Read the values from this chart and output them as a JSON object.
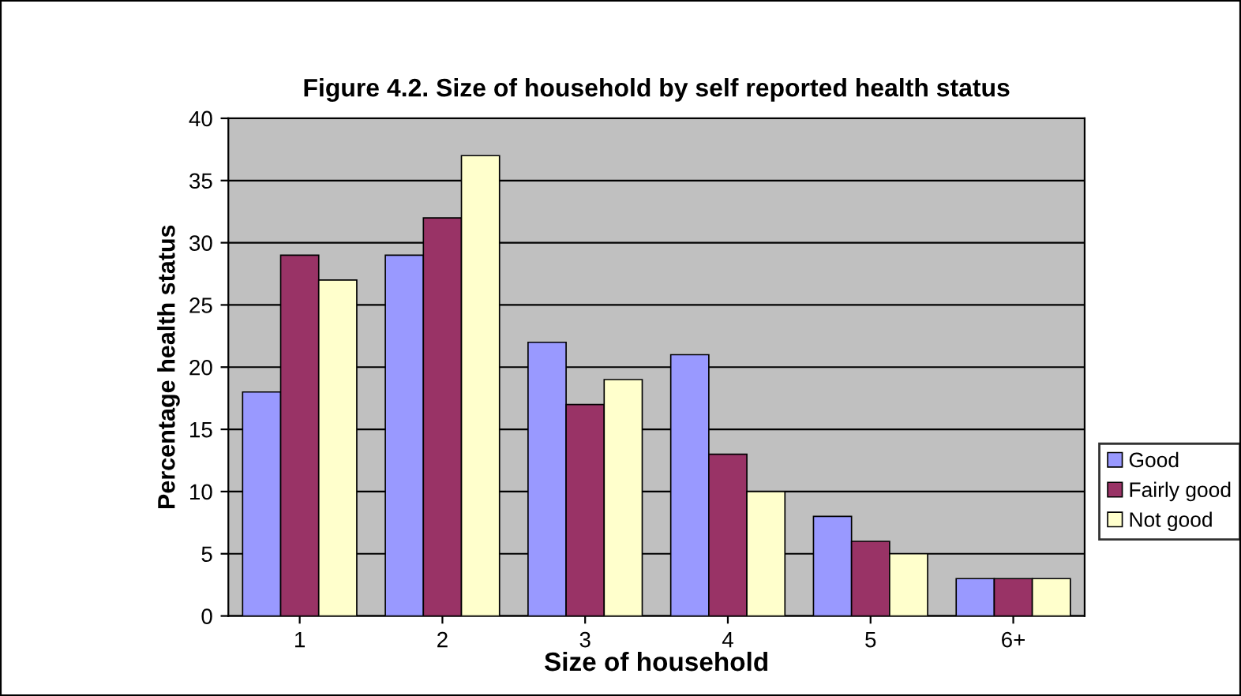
{
  "chart_data": {
    "type": "bar",
    "title": "Figure 4.2. Size of household by self reported health status",
    "xlabel": "Size of household",
    "ylabel": "Percentage health status",
    "categories": [
      "1",
      "2",
      "3",
      "4",
      "5",
      "6+"
    ],
    "series": [
      {
        "name": "Good",
        "color": "#9999ff",
        "values": [
          18,
          29,
          22,
          21,
          8,
          3
        ]
      },
      {
        "name": "Fairly good",
        "color": "#993366",
        "values": [
          29,
          32,
          17,
          13,
          6,
          3
        ]
      },
      {
        "name": "Not good",
        "color": "#ffffcc",
        "values": [
          27,
          37,
          19,
          10,
          5,
          3
        ]
      }
    ],
    "ylim": [
      0,
      40
    ],
    "yticks": [
      0,
      5,
      10,
      15,
      20,
      25,
      30,
      35,
      40
    ],
    "grid": "y",
    "legend": "right"
  }
}
